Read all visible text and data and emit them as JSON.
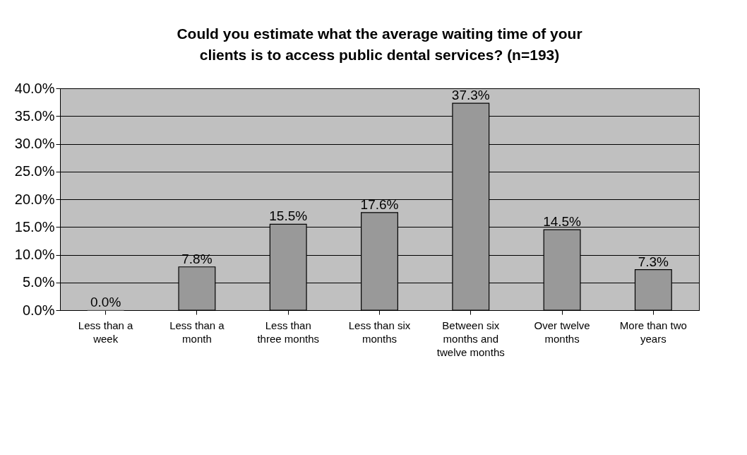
{
  "chart_data": {
    "type": "bar",
    "title": "Could you estimate what the average waiting time of your clients is to access public dental services? (n=193)",
    "categories": [
      "Less than a week",
      "Less than a month",
      "Less than three months",
      "Less than six months",
      "Between six months and twelve months",
      "Over twelve months",
      "More than two years"
    ],
    "values": [
      0.0,
      7.8,
      15.5,
      17.6,
      37.3,
      14.5,
      7.3
    ],
    "value_labels": [
      "0.0%",
      "7.8%",
      "15.5%",
      "17.6%",
      "37.3%",
      "14.5%",
      "7.3%"
    ],
    "color": "#999999",
    "ylim": [
      0,
      40
    ],
    "yticks": [
      {
        "value": 0,
        "label": "0.0%"
      },
      {
        "value": 5,
        "label": "5.0%"
      },
      {
        "value": 10,
        "label": "10.0%"
      },
      {
        "value": 15,
        "label": "15.0%"
      },
      {
        "value": 20,
        "label": "20.0%"
      },
      {
        "value": 25,
        "label": "25.0%"
      },
      {
        "value": 30,
        "label": "30.0%"
      },
      {
        "value": 35,
        "label": "35.0%"
      },
      {
        "value": 40,
        "label": "40.0%"
      }
    ],
    "grid": "y"
  }
}
